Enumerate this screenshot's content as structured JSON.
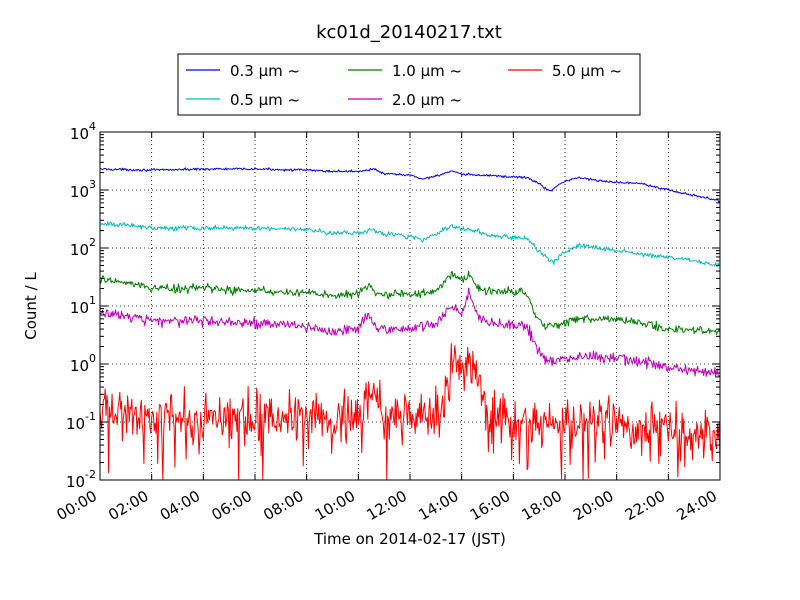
{
  "chart_data": {
    "type": "line",
    "title": "kc01d_20140217.txt",
    "xlabel": "Time on 2014-02-17 (JST)",
    "ylabel": "Count / L",
    "x_ticks": [
      "00:00",
      "02:00",
      "04:00",
      "06:00",
      "08:00",
      "10:00",
      "12:00",
      "14:00",
      "16:00",
      "18:00",
      "20:00",
      "22:00",
      "24:00"
    ],
    "y_ticks": [
      {
        "base": "10",
        "exp": "-2"
      },
      {
        "base": "10",
        "exp": "-1"
      },
      {
        "base": "10",
        "exp": "0"
      },
      {
        "base": "10",
        "exp": "1"
      },
      {
        "base": "10",
        "exp": "2"
      },
      {
        "base": "10",
        "exp": "3"
      },
      {
        "base": "10",
        "exp": "4"
      }
    ],
    "xlim": [
      0,
      24
    ],
    "ylim": [
      0.01,
      10000
    ],
    "y_scale": "log",
    "grid": true,
    "legend_position": "top-center",
    "series": [
      {
        "name": "0.3 μm ~",
        "color": "#0000ff",
        "noise": 0.01,
        "points": [
          [
            0,
            2300
          ],
          [
            2,
            2200
          ],
          [
            4,
            2300
          ],
          [
            6,
            2300
          ],
          [
            8,
            2200
          ],
          [
            9,
            2100
          ],
          [
            10,
            2100
          ],
          [
            10.6,
            2300
          ],
          [
            11,
            1900
          ],
          [
            12,
            1800
          ],
          [
            12.5,
            1550
          ],
          [
            13,
            1750
          ],
          [
            13.6,
            2100
          ],
          [
            14,
            1850
          ],
          [
            14.3,
            1850
          ],
          [
            14.6,
            1800
          ],
          [
            15,
            1800
          ],
          [
            15.7,
            1700
          ],
          [
            16.5,
            1650
          ],
          [
            17,
            1300
          ],
          [
            17.3,
            1000
          ],
          [
            17.5,
            1000
          ],
          [
            17.8,
            1300
          ],
          [
            18.5,
            1650
          ],
          [
            19.5,
            1400
          ],
          [
            21,
            1300
          ],
          [
            22,
            1000
          ],
          [
            23,
            800
          ],
          [
            24,
            650
          ]
        ]
      },
      {
        "name": "0.5 μm ~",
        "color": "#00bfbf",
        "noise": 0.02,
        "points": [
          [
            0,
            260
          ],
          [
            1,
            250
          ],
          [
            2,
            220
          ],
          [
            4,
            220
          ],
          [
            6,
            220
          ],
          [
            7,
            220
          ],
          [
            8,
            210
          ],
          [
            9,
            180
          ],
          [
            10,
            180
          ],
          [
            10.5,
            210
          ],
          [
            11,
            170
          ],
          [
            12,
            160
          ],
          [
            12.5,
            140
          ],
          [
            13,
            170
          ],
          [
            13.6,
            240
          ],
          [
            14,
            210
          ],
          [
            14.6,
            200
          ],
          [
            15,
            170
          ],
          [
            16,
            150
          ],
          [
            16.5,
            150
          ],
          [
            17,
            90
          ],
          [
            17.3,
            65
          ],
          [
            17.5,
            55
          ],
          [
            17.8,
            75
          ],
          [
            18.3,
            100
          ],
          [
            18.6,
            110
          ],
          [
            20,
            90
          ],
          [
            22,
            70
          ],
          [
            23,
            60
          ],
          [
            24,
            50
          ]
        ]
      },
      {
        "name": "1.0 μm ~",
        "color": "#008000",
        "noise": 0.035,
        "points": [
          [
            0,
            30
          ],
          [
            1,
            25
          ],
          [
            2,
            21
          ],
          [
            3,
            20
          ],
          [
            4,
            20
          ],
          [
            6,
            18
          ],
          [
            8,
            17
          ],
          [
            9,
            15
          ],
          [
            10,
            16
          ],
          [
            10.4,
            24
          ],
          [
            10.7,
            16
          ],
          [
            11,
            16
          ],
          [
            12,
            16
          ],
          [
            13,
            18
          ],
          [
            13.6,
            35
          ],
          [
            14,
            30
          ],
          [
            14.3,
            35
          ],
          [
            14.6,
            20
          ],
          [
            15,
            18
          ],
          [
            16.5,
            17
          ],
          [
            16.8,
            8
          ],
          [
            17.2,
            4.5
          ],
          [
            17.5,
            4.5
          ],
          [
            18.5,
            6
          ],
          [
            20,
            6
          ],
          [
            21,
            5
          ],
          [
            22,
            4
          ],
          [
            24,
            3.5
          ]
        ]
      },
      {
        "name": "2.0 μm ~",
        "color": "#bf00bf",
        "noise": 0.045,
        "points": [
          [
            0,
            8
          ],
          [
            1,
            7
          ],
          [
            2,
            5.5
          ],
          [
            4,
            5.5
          ],
          [
            6,
            5
          ],
          [
            8,
            4.5
          ],
          [
            9,
            3.6
          ],
          [
            10,
            4
          ],
          [
            10.4,
            8
          ],
          [
            10.7,
            4
          ],
          [
            11,
            4
          ],
          [
            12,
            4
          ],
          [
            13,
            5
          ],
          [
            13.6,
            10
          ],
          [
            14,
            8
          ],
          [
            14.3,
            17
          ],
          [
            14.6,
            7
          ],
          [
            15,
            5
          ],
          [
            16.5,
            4.5
          ],
          [
            16.8,
            2.5
          ],
          [
            17.2,
            1.2
          ],
          [
            17.5,
            1.1
          ],
          [
            18.5,
            1.3
          ],
          [
            20,
            1.3
          ],
          [
            21,
            1.1
          ],
          [
            22,
            0.85
          ],
          [
            24,
            0.7
          ]
        ]
      },
      {
        "name": "5.0 μm ~",
        "color": "#ff0000",
        "noise": 0.2,
        "points": [
          [
            0,
            0.18
          ],
          [
            2,
            0.13
          ],
          [
            4,
            0.12
          ],
          [
            6,
            0.12
          ],
          [
            8,
            0.12
          ],
          [
            9,
            0.11
          ],
          [
            10,
            0.12
          ],
          [
            10.3,
            0.3
          ],
          [
            10.6,
            0.35
          ],
          [
            11,
            0.12
          ],
          [
            12,
            0.12
          ],
          [
            13,
            0.15
          ],
          [
            13.5,
            0.35
          ],
          [
            13.6,
            1.2
          ],
          [
            14,
            0.9
          ],
          [
            14.3,
            1.8
          ],
          [
            14.6,
            0.7
          ],
          [
            15,
            0.15
          ],
          [
            16,
            0.1
          ],
          [
            17,
            0.1
          ],
          [
            18,
            0.1
          ],
          [
            19,
            0.1
          ],
          [
            20,
            0.1
          ],
          [
            22,
            0.07
          ],
          [
            24,
            0.05
          ]
        ]
      }
    ]
  }
}
